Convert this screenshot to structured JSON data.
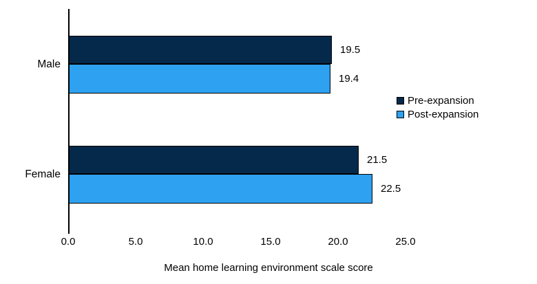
{
  "chart_data": {
    "type": "bar",
    "orientation": "horizontal",
    "title": "",
    "xlabel": "Mean home learning environment scale score",
    "ylabel": "",
    "categories": [
      "Male",
      "Female"
    ],
    "series": [
      {
        "name": "Pre-expansion",
        "color": "#05294B",
        "values": [
          19.5,
          21.5
        ],
        "value_labels": [
          "19.5",
          "21.5"
        ]
      },
      {
        "name": "Post-expansion",
        "color": "#2EA1F1",
        "values": [
          19.4,
          22.5
        ],
        "value_labels": [
          "19.4",
          "22.5"
        ]
      }
    ],
    "xlim": [
      0,
      25
    ],
    "x_tick_values": [
      0,
      5,
      10,
      15,
      20,
      25
    ],
    "x_tick_labels": [
      "0.0",
      "5.0",
      "10.0",
      "15.0",
      "20.0",
      "25.0"
    ],
    "grid": false,
    "legend_position": "right-middle",
    "bar_border_color": "#000000",
    "axis_line_color": "#000000",
    "text_color": "#000000",
    "background_color": "#FFFFFF"
  }
}
